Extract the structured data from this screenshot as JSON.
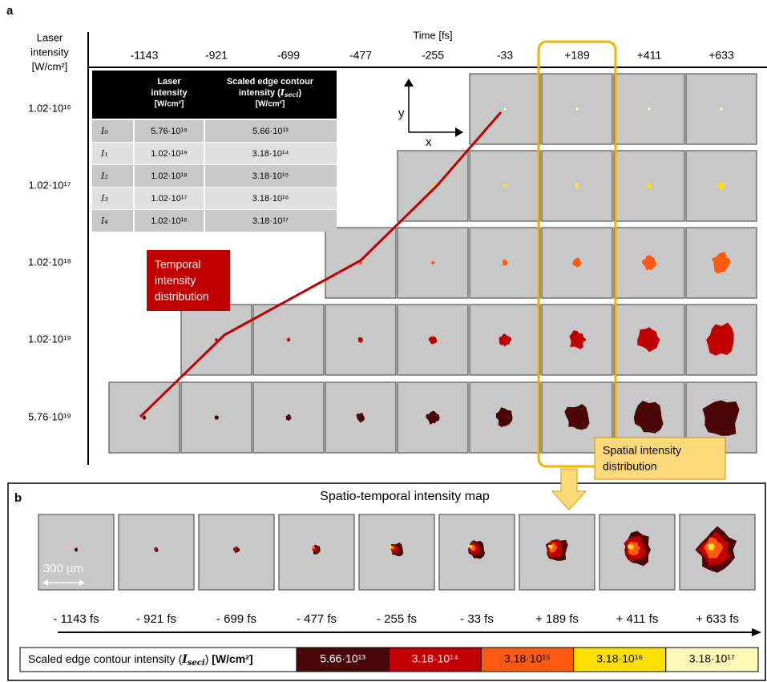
{
  "panel_a": {
    "label": "a",
    "y_title": [
      "Laser",
      "intensity",
      "[W/cm²]"
    ],
    "x_title": "Time [fs]",
    "times": [
      "-1143",
      "-921",
      "-699",
      "-477",
      "-255",
      "-33",
      "+189",
      "+411",
      "+633"
    ],
    "intensities": [
      "1.02·10¹⁶",
      "1.02·10¹⁷",
      "1.02·10¹⁸",
      "1.02·10¹⁹",
      "5.76·10¹⁹"
    ],
    "table": {
      "laser_header": [
        "Laser",
        "intensity",
        "[W/cm²]"
      ],
      "scaled_header": {
        "line1": "Scaled edge contour",
        "pre": "intensity (",
        "symbol": "I",
        "subscript": "seci",
        "post": ")",
        "unit": "[W/cm²]"
      },
      "rows": [
        [
          "I₀",
          "5.76·10¹⁹",
          "5.66·10¹³"
        ],
        [
          "I₁",
          "1.02·10¹⁹",
          "3.18·10¹⁴"
        ],
        [
          "I₂",
          "1.02·10¹⁸",
          "3.18·10¹⁵"
        ],
        [
          "I₃",
          "1.02·10¹⁷",
          "3.18·10¹⁶"
        ],
        [
          "I₄",
          "1.02·10¹⁶",
          "3.18·10¹⁷"
        ]
      ]
    },
    "axis_y": "y",
    "axis_x": "x",
    "temporal_box": [
      "Temporal",
      "intensity",
      "distribution"
    ],
    "spatial_box": [
      "Spatial intensity",
      "distribution"
    ]
  },
  "panel_b": {
    "label": "b",
    "title": "Spatio-temporal intensity map",
    "scale_bar": "300 µm",
    "times": [
      "- 1143 fs",
      "- 921 fs",
      "- 699 fs",
      "- 477 fs",
      "- 255 fs",
      "- 33 fs",
      "+ 189 fs",
      "+ 411 fs",
      "+ 633 fs"
    ],
    "colorbar": {
      "pre": "Scaled edge contour intensity (",
      "symbol": "I",
      "subscript": "seci",
      "post": ") ",
      "unit": "[W/cm²]",
      "levels": [
        "5.66·10¹³",
        "3.18·10¹⁴",
        "3.18·10¹⁵",
        "3.18·10¹⁶",
        "3.18·10¹⁷"
      ],
      "colors": [
        "#4a0606",
        "#c00000",
        "#ff5a10",
        "#ffe000",
        "#fff8b8"
      ]
    }
  }
}
